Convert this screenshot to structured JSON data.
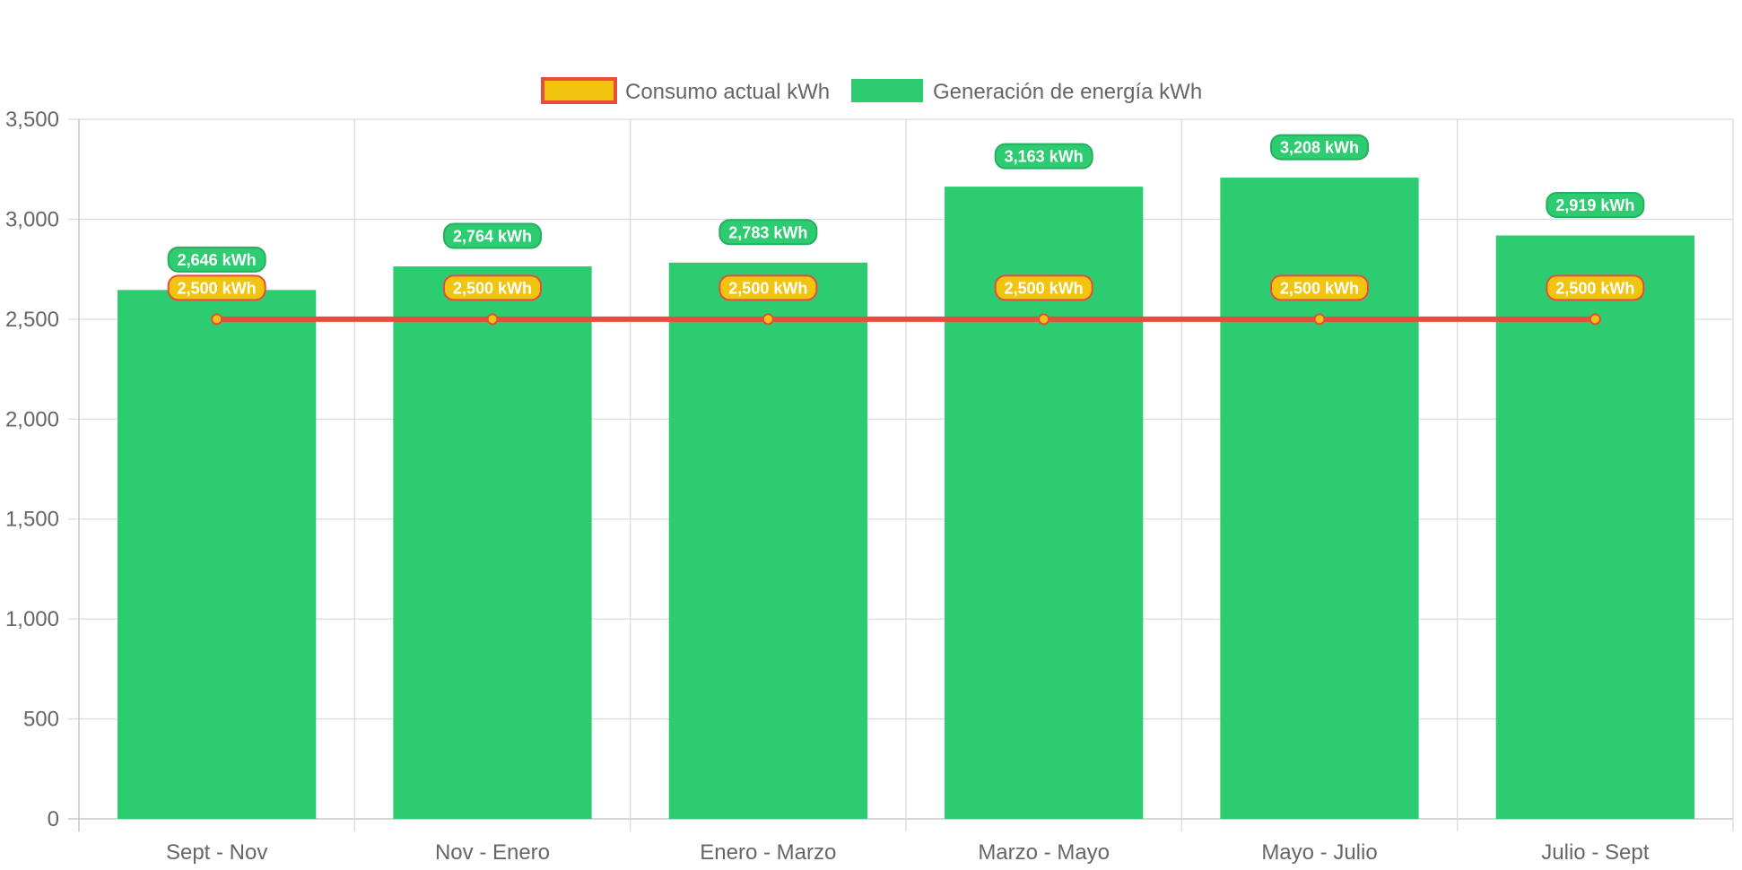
{
  "chart_data": {
    "type": "bar",
    "categories": [
      "Sept - Nov",
      "Nov - Enero",
      "Enero - Marzo",
      "Marzo - Mayo",
      "Mayo - Julio",
      "Julio - Sept"
    ],
    "series": [
      {
        "name": "Generación de energía kWh",
        "kind": "bar",
        "color": "#2ecc71",
        "label_border": "#27ae60",
        "values": [
          2646,
          2764,
          2783,
          3163,
          3208,
          2919
        ],
        "data_labels": [
          "2,646 kWh",
          "2,764 kWh",
          "2,783 kWh",
          "3,163 kWh",
          "3,208 kWh",
          "2,919 kWh"
        ]
      },
      {
        "name": "Consumo actual kWh",
        "kind": "line",
        "color": "#f1c40f",
        "border_color": "#e74c3c",
        "values": [
          2500,
          2500,
          2500,
          2500,
          2500,
          2500
        ],
        "data_labels": [
          "2,500 kWh",
          "2,500 kWh",
          "2,500 kWh",
          "2,500 kWh",
          "2,500 kWh",
          "2,500 kWh"
        ]
      }
    ],
    "ylim": [
      0,
      3500
    ],
    "yticks": [
      0,
      500,
      1000,
      1500,
      2000,
      2500,
      3000,
      3500
    ],
    "ytick_labels": [
      "0",
      "500",
      "1,000",
      "1,500",
      "2,000",
      "2,500",
      "3,000",
      "3,500"
    ],
    "grid": true,
    "legend_position": "top-center",
    "legend": [
      "Consumo actual kWh",
      "Generación de energía kWh"
    ]
  }
}
